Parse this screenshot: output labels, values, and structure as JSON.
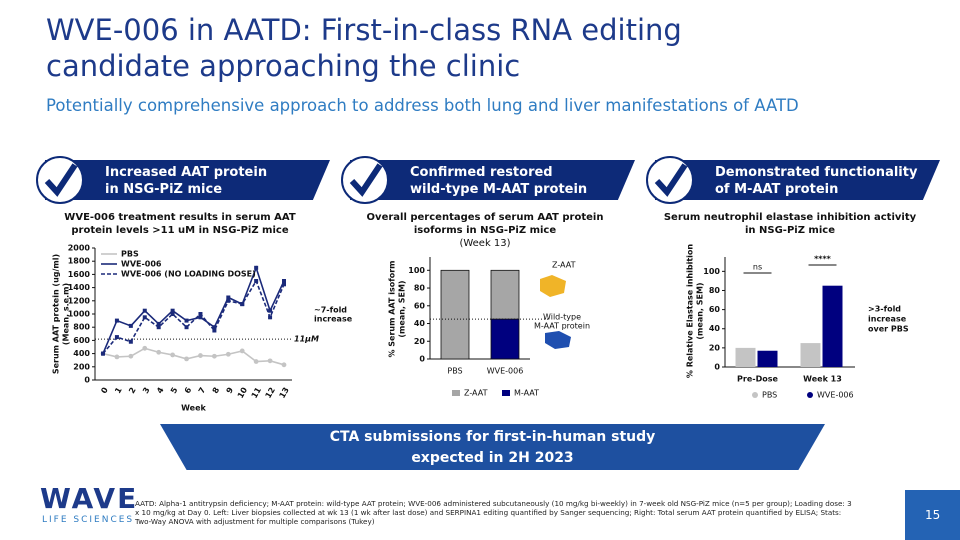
{
  "header": {
    "title": [
      "WVE-006 in AATD: First-in-class RNA editing",
      "candidate approaching the clinic"
    ],
    "subtitle": "Potentially comprehensive approach to address both lung and liver manifestations of AATD"
  },
  "panels": [
    {
      "banner": [
        "Increased AAT protein",
        "in NSG-PiZ mice"
      ],
      "heading": "WVE-006 treatment results in serum AAT protein levels >11 uM in NSG-PiZ mice"
    },
    {
      "banner": [
        "Confirmed restored",
        "wild-type M-AAT protein"
      ],
      "heading": "Overall percentages of serum AAT protein isoforms in NSG-PiZ mice",
      "subheading": "(Week 13)"
    },
    {
      "banner": [
        "Demonstrated functionality",
        "of M-AAT protein"
      ],
      "heading": "Serum neutrophil elastase inhibition activity in NSG-PiZ mice"
    }
  ],
  "chart_data": [
    {
      "type": "line",
      "y_label": [
        "Serum AAT protein (ug/ml)",
        "(Mean, s.e.m)"
      ],
      "x_label": "Week",
      "categories": [
        "0",
        "1",
        "2",
        "3",
        "4",
        "5",
        "6",
        "7",
        "8",
        "9",
        "10",
        "11",
        "12",
        "13"
      ],
      "series": [
        {
          "name": "PBS",
          "color": "#c4c4c4",
          "dash": false,
          "values": [
            400,
            350,
            360,
            480,
            420,
            380,
            320,
            370,
            360,
            390,
            440,
            280,
            290,
            230
          ]
        },
        {
          "name": "WVE-006",
          "color": "#1b2a7a",
          "dash": false,
          "values": [
            400,
            900,
            820,
            1050,
            850,
            1050,
            900,
            950,
            800,
            1250,
            1150,
            1700,
            1050,
            1500
          ]
        },
        {
          "name": "WVE-006 (NO LOADING DOSE)",
          "color": "#1b2a7a",
          "dash": true,
          "values": [
            400,
            650,
            580,
            950,
            800,
            1000,
            800,
            1000,
            750,
            1200,
            1150,
            1500,
            950,
            1450
          ]
        }
      ],
      "ylim": [
        0,
        2000
      ],
      "yticks": [
        0,
        200,
        400,
        600,
        800,
        1000,
        1200,
        1400,
        1600,
        1800,
        2000
      ],
      "reference_line": {
        "value": 620,
        "label": "11µM"
      },
      "annotation": [
        "~7-fold",
        "increase"
      ]
    },
    {
      "type": "stacked_bar",
      "y_label": [
        "% Serum AAT isoform",
        "(mean, SEM)"
      ],
      "categories": [
        "PBS",
        "WVE-006"
      ],
      "series": [
        {
          "name": "Z-AAT",
          "color": "#a6a6a6",
          "values": [
            100,
            55
          ]
        },
        {
          "name": "M-AAT",
          "color": "#00007f",
          "values": [
            0,
            45
          ]
        }
      ],
      "ylim": [
        0,
        115
      ],
      "yticks": [
        0,
        20,
        40,
        60,
        80,
        100
      ],
      "reference_line": 45,
      "annotations": [
        "Z-AAT",
        "Wild-type",
        "M-AAT protein"
      ]
    },
    {
      "type": "grouped_bar",
      "y_label": [
        "% Relative Elastase inhibition",
        "(mean, SEM)"
      ],
      "categories": [
        "Pre-Dose",
        "Week 13"
      ],
      "series": [
        {
          "name": "PBS",
          "color": "#c4c4c4",
          "values": [
            20,
            25
          ]
        },
        {
          "name": "WVE-006",
          "color": "#00007f",
          "values": [
            17,
            85
          ]
        }
      ],
      "ylim": [
        0,
        115
      ],
      "yticks": [
        0,
        20,
        40,
        60,
        80,
        100
      ],
      "significance": [
        "ns",
        "****"
      ],
      "annotation": [
        ">3-fold",
        "increase",
        "over PBS"
      ]
    }
  ],
  "callout": [
    "CTA submissions for first-in-human study",
    "expected in 2H 2023"
  ],
  "logo": {
    "name": "WAVE",
    "tagline": "LIFE SCIENCES"
  },
  "footnote": "AATD: Alpha-1 antitrypsin deficiency; M-AAT protein: wild-type AAT protein; WVE-006 administered subcutaneously (10 mg/kg bi-weekly) in 7-week old NSG-PiZ mice (n=5 per group); Loading dose: 3 x 10 mg/kg at Day 0. Left: Liver biopsies collected at wk 13 (1 wk after last dose) and SERPINA1 editing quantified by Sanger sequencing; Right: Total serum AAT protein quantified by ELISA; Stats: Two-Way ANOVA with adjustment for multiple comparisons (Tukey)",
  "page_number": "15"
}
